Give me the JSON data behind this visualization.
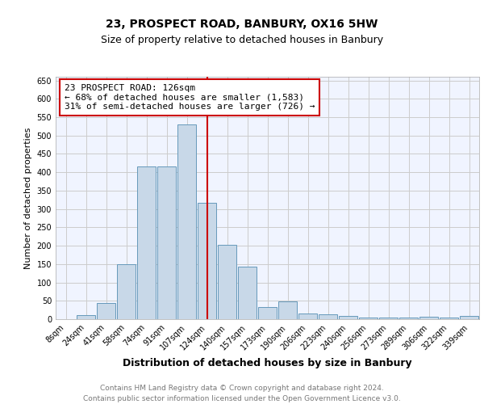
{
  "title1": "23, PROSPECT ROAD, BANBURY, OX16 5HW",
  "title2": "Size of property relative to detached houses in Banbury",
  "xlabel": "Distribution of detached houses by size in Banbury",
  "ylabel": "Number of detached properties",
  "bins": [
    "8sqm",
    "24sqm",
    "41sqm",
    "58sqm",
    "74sqm",
    "91sqm",
    "107sqm",
    "124sqm",
    "140sqm",
    "157sqm",
    "173sqm",
    "190sqm",
    "206sqm",
    "223sqm",
    "240sqm",
    "256sqm",
    "273sqm",
    "289sqm",
    "306sqm",
    "322sqm",
    "339sqm"
  ],
  "values": [
    0,
    10,
    44,
    150,
    416,
    416,
    530,
    316,
    203,
    143,
    34,
    48,
    16,
    14,
    8,
    5,
    4,
    4,
    6,
    5,
    8
  ],
  "bar_color": "#c8d8e8",
  "bar_edge_color": "#6699bb",
  "vline_bin_index": 7,
  "vline_color": "#cc0000",
  "annotation_text": "23 PROSPECT ROAD: 126sqm\n← 68% of detached houses are smaller (1,583)\n31% of semi-detached houses are larger (726) →",
  "annotation_box_color": "white",
  "annotation_box_edge_color": "#cc0000",
  "ylim": [
    0,
    660
  ],
  "yticks": [
    0,
    50,
    100,
    150,
    200,
    250,
    300,
    350,
    400,
    450,
    500,
    550,
    600,
    650
  ],
  "footer_text": "Contains HM Land Registry data © Crown copyright and database right 2024.\nContains public sector information licensed under the Open Government Licence v3.0.",
  "grid_color": "#cccccc",
  "background_color": "#f0f4ff",
  "title1_fontsize": 10,
  "title2_fontsize": 9,
  "xlabel_fontsize": 9,
  "ylabel_fontsize": 8,
  "tick_fontsize": 7,
  "annotation_fontsize": 8,
  "footer_fontsize": 6.5
}
